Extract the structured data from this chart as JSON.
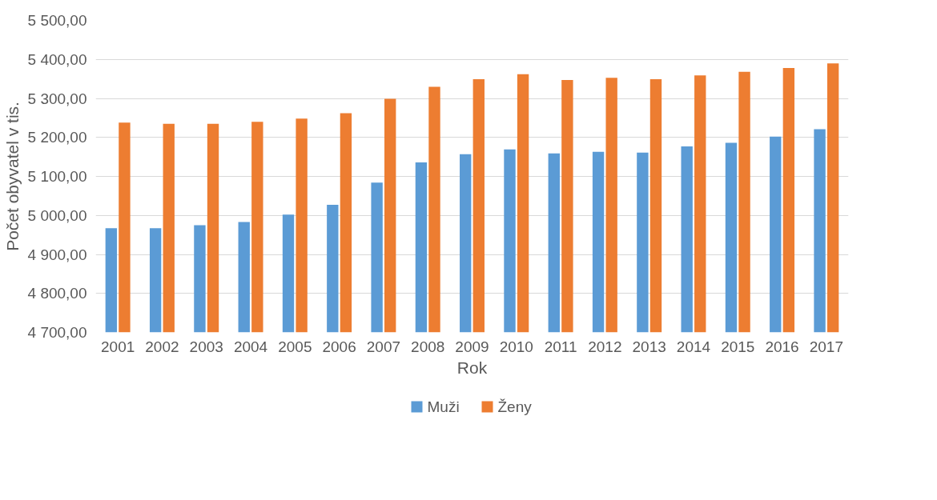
{
  "chart_data": {
    "type": "bar",
    "xlabel": "Rok",
    "ylabel": "Počet obyvatel v tis.",
    "categories": [
      "2001",
      "2002",
      "2003",
      "2004",
      "2005",
      "2006",
      "2007",
      "2008",
      "2009",
      "2010",
      "2011",
      "2012",
      "2013",
      "2014",
      "2015",
      "2016",
      "2017"
    ],
    "series": [
      {
        "name": "Muži",
        "color": "#5b9bd5",
        "values": [
          4967,
          4967,
          4975,
          4983,
          5002,
          5027,
          5084,
          5136,
          5157,
          5169,
          5159,
          5163,
          5161,
          5177,
          5186,
          5202,
          5221
        ]
      },
      {
        "name": "Ženy",
        "color": "#ed7d31",
        "values": [
          5238,
          5235,
          5235,
          5240,
          5248,
          5262,
          5299,
          5330,
          5349,
          5362,
          5347,
          5353,
          5349,
          5359,
          5368,
          5378,
          5390
        ]
      }
    ],
    "ylim": [
      4700,
      5500
    ],
    "yticks": [
      {
        "value": 4700,
        "label": "4 700,00"
      },
      {
        "value": 4800,
        "label": "4 800,00"
      },
      {
        "value": 4900,
        "label": "4 900,00"
      },
      {
        "value": 5000,
        "label": "5 000,00"
      },
      {
        "value": 5100,
        "label": "5 100,00"
      },
      {
        "value": 5200,
        "label": "5 200,00"
      },
      {
        "value": 5300,
        "label": "5 300,00"
      },
      {
        "value": 5400,
        "label": "5 400,00"
      },
      {
        "value": 5500,
        "label": "5 500,00"
      }
    ],
    "grid": "y",
    "legend": "bottom"
  }
}
